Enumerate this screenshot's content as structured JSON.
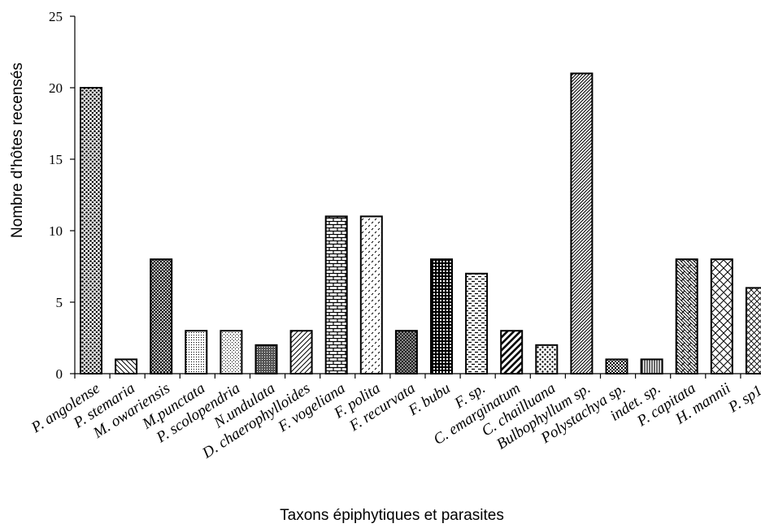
{
  "chart_data": {
    "type": "bar",
    "title": "",
    "xlabel": "Taxons épiphytiques et parasites",
    "ylabel": "Nombre d'hôtes recensés",
    "ylim": [
      0,
      25
    ],
    "yticks": [
      0,
      5,
      10,
      15,
      20,
      25
    ],
    "grid": false,
    "legend": "none",
    "bar_color": "#000000",
    "categories": [
      "P. angolense",
      "P. stemaria",
      "M. owariensis",
      "M.punctata",
      "P. scolopendria",
      "N.undulata",
      "D. chaerophylloides",
      "F. vogeliana",
      "F. polita",
      "F. recurvata",
      "F. bubu",
      "F. sp.",
      "C. emarginatum",
      "C. chailluana",
      "Bulbophyllum sp.",
      "Polystachya sp.",
      "indet. sp.",
      "P. capitata",
      "H. mannii",
      "P. sp1."
    ],
    "values": [
      20,
      1,
      8,
      3,
      3,
      2,
      3,
      11,
      11,
      3,
      8,
      7,
      3,
      2,
      21,
      1,
      1,
      8,
      8,
      6
    ],
    "patterns": [
      "dots-dense",
      "diag-left-sparse",
      "crosshatch-dense",
      "fine-dots",
      "light-dots",
      "dark-dots",
      "diag-right",
      "bricks",
      "dashes-diag",
      "dark-checker",
      "dark-grid",
      "horizontal-dashes",
      "diag-bold",
      "spots",
      "diag-right-dense",
      "checker",
      "vertical-lines",
      "weave",
      "diamond-lattice",
      "diag-cross"
    ]
  }
}
